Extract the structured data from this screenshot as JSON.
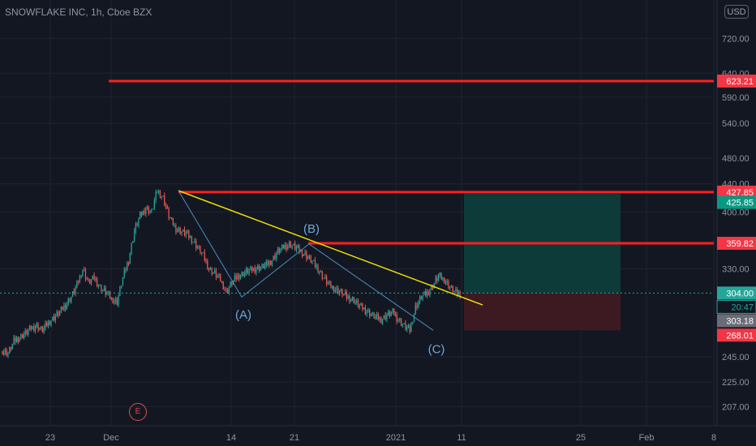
{
  "header": {
    "title": "SNOWFLAKE INC, 1h, Cboe BZX",
    "currency": "USD"
  },
  "event_marker": "E",
  "colors": {
    "background": "#131722",
    "grid": "#1f2332",
    "up": "#26a69a",
    "down": "#ef5350",
    "level_line": "#ff1f1f",
    "trend_line": "#f2e400",
    "wave_line": "#4a8fc0",
    "profit_zone": "#0d3b3a",
    "loss_zone": "#3d1a22",
    "axis_text": "#8f94a3"
  },
  "chart_data": {
    "type": "candlestick",
    "title": "SNOWFLAKE INC, 1h, Cboe BZX",
    "scale": "log",
    "y_range": [
      194,
      820
    ],
    "y_ticks": [
      "720.00",
      "640.00",
      "590.00",
      "540.00",
      "480.00",
      "440.00",
      "400.00",
      "330.00",
      "245.00",
      "225.00",
      "207.00"
    ],
    "x_labels": [
      "23",
      "Dec",
      "14",
      "21",
      "2021",
      "11",
      "25",
      "Feb",
      "8"
    ],
    "horizontal_levels": [
      623.21,
      427.85,
      359.82
    ],
    "price_labels": [
      {
        "text": "623.21",
        "kind": "level"
      },
      {
        "text": "427.85",
        "kind": "level"
      },
      {
        "text": "425.85",
        "kind": "target"
      },
      {
        "text": "359.82",
        "kind": "level"
      },
      {
        "text": "304.00",
        "kind": "last"
      },
      {
        "text": "20:47",
        "kind": "countdown"
      },
      {
        "text": "303.18",
        "kind": "grey"
      },
      {
        "text": "268.01",
        "kind": "stop"
      }
    ],
    "current_price": 304.0,
    "wave_labels": [
      "(A)",
      "(B)",
      "(C)"
    ],
    "trendline": {
      "from": 430,
      "to": 292
    },
    "wave_points": [
      430,
      300,
      359,
      268
    ],
    "position": {
      "entry": 304.0,
      "target": 425.85,
      "stop": 268.01
    },
    "price_path": [
      250,
      248,
      258,
      262,
      265,
      270,
      272,
      268,
      275,
      280,
      285,
      292,
      300,
      312,
      330,
      315,
      320,
      310,
      305,
      298,
      295,
      320,
      340,
      375,
      395,
      405,
      400,
      430,
      420,
      395,
      380,
      375,
      372,
      365,
      355,
      345,
      330,
      325,
      318,
      305,
      315,
      322,
      325,
      328,
      330,
      332,
      334,
      340,
      350,
      355,
      359,
      355,
      350,
      345,
      338,
      330,
      320,
      312,
      308,
      305,
      300,
      298,
      292,
      288,
      284,
      280,
      278,
      282,
      285,
      278,
      272,
      268,
      290,
      300,
      304,
      312,
      322,
      318,
      310,
      304
    ]
  }
}
